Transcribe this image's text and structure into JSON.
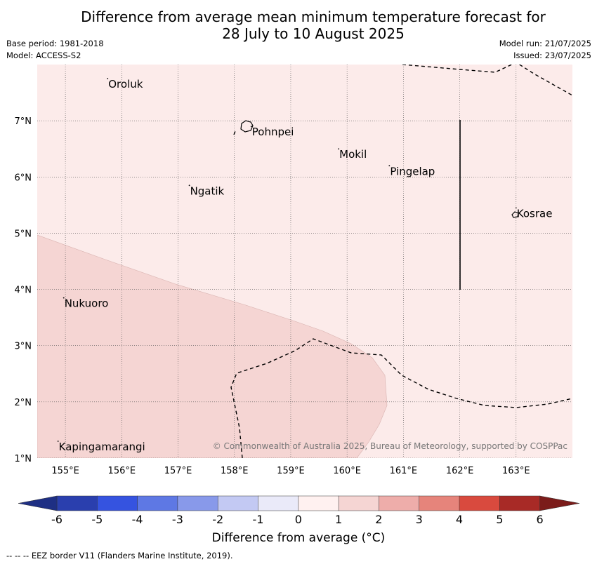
{
  "title_line1": "Difference from average mean minimum temperature forecast for",
  "title_line2": "28 July to 10 August 2025",
  "meta_left": {
    "base_period": "Base period: 1981-2018",
    "model": "Model: ACCESS-S2"
  },
  "meta_right": {
    "model_run": "Model run: 21/07/2025",
    "issued": "Issued: 23/07/2025"
  },
  "map": {
    "lon_range": [
      154.5,
      164.0
    ],
    "lat_range": [
      1.0,
      8.0
    ],
    "lon_ticks": [
      "155°E",
      "156°E",
      "157°E",
      "158°E",
      "159°E",
      "160°E",
      "161°E",
      "162°E",
      "163°E"
    ],
    "lat_ticks": [
      "1°N",
      "2°N",
      "3°N",
      "4°N",
      "5°N",
      "6°N",
      "7°N"
    ],
    "places": [
      {
        "name": "Oroluk",
        "lon": 155.75,
        "lat": 7.6
      },
      {
        "name": "Pohnpei",
        "lon": 158.3,
        "lat": 6.75
      },
      {
        "name": "Mokil",
        "lon": 159.85,
        "lat": 6.35
      },
      {
        "name": "Pingelap",
        "lon": 160.75,
        "lat": 6.05
      },
      {
        "name": "Ngatik",
        "lon": 157.2,
        "lat": 5.7
      },
      {
        "name": "Kosrae",
        "lon": 163.0,
        "lat": 5.3
      },
      {
        "name": "Nukuoro",
        "lon": 154.97,
        "lat": 3.7
      },
      {
        "name": "Kapingamarangi",
        "lon": 154.87,
        "lat": 1.15
      }
    ],
    "anomaly_background": "0 to 1",
    "anomaly_region": "1 to 2",
    "colors": {
      "band_0_1": "#fcebea",
      "band_1_2": "#f5d5d3"
    },
    "copyright": "© Commonwealth of Australia 2025, Bureau of Meteorology, supported by COSPPac"
  },
  "colorbar": {
    "ticks": [
      "-6",
      "-5",
      "-4",
      "-3",
      "-2",
      "-1",
      "0",
      "1",
      "2",
      "3",
      "4",
      "5",
      "6"
    ],
    "colors": [
      "#2a3fae",
      "#3553e0",
      "#5e78e4",
      "#8899ea",
      "#c3c9f3",
      "#eaeaf9",
      "#fff1f0",
      "#f5d5d3",
      "#eeadaa",
      "#e6847b",
      "#d94a3e",
      "#a82a26"
    ],
    "under_color": "#1e2f84",
    "over_color": "#7b1c1a",
    "label": "Difference from average (°C)"
  },
  "footnote": "--  --  -- EEZ border V11 (Flanders Marine Institute, 2019)."
}
